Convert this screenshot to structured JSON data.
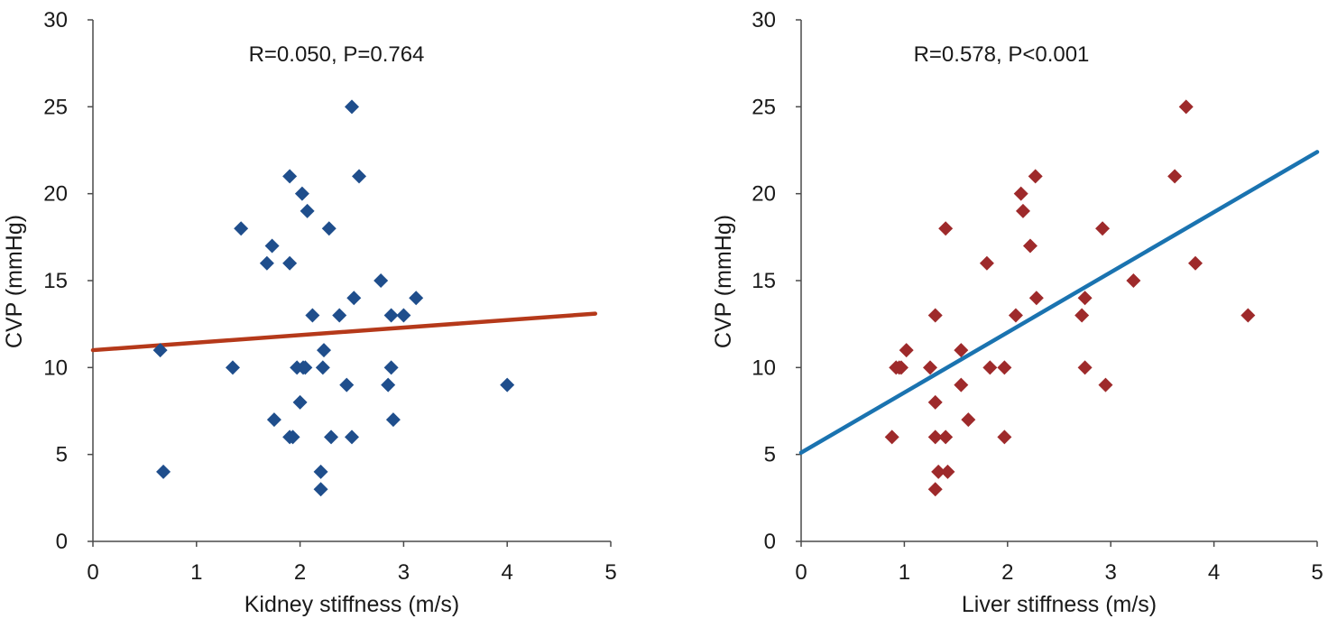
{
  "chart_data": [
    {
      "type": "scatter",
      "annotation": "R=0.050, P=0.764",
      "xlabel": "Kidney stiffness (m/s)",
      "ylabel": "CVP (mmHg)",
      "xlim": [
        0,
        5
      ],
      "ylim": [
        0,
        30
      ],
      "xticks": [
        "0",
        "1",
        "2",
        "3",
        "4",
        "5"
      ],
      "yticks": [
        "0",
        "5",
        "10",
        "15",
        "20",
        "25",
        "30"
      ],
      "marker_color": "#1f4e8c",
      "line_color": "#b5391a",
      "fit_line": [
        [
          0,
          11.0
        ],
        [
          4.85,
          13.1
        ]
      ],
      "points": [
        [
          0.65,
          11
        ],
        [
          0.68,
          4
        ],
        [
          1.35,
          10
        ],
        [
          1.43,
          18
        ],
        [
          1.68,
          16
        ],
        [
          1.73,
          17
        ],
        [
          1.75,
          7
        ],
        [
          1.9,
          21
        ],
        [
          1.9,
          16
        ],
        [
          1.9,
          6
        ],
        [
          1.93,
          6
        ],
        [
          1.97,
          10
        ],
        [
          2.0,
          8
        ],
        [
          2.02,
          20
        ],
        [
          2.03,
          10
        ],
        [
          2.05,
          10
        ],
        [
          2.07,
          19
        ],
        [
          2.12,
          13
        ],
        [
          2.2,
          4
        ],
        [
          2.2,
          3
        ],
        [
          2.22,
          10
        ],
        [
          2.23,
          11
        ],
        [
          2.28,
          18
        ],
        [
          2.3,
          6
        ],
        [
          2.38,
          13
        ],
        [
          2.45,
          9
        ],
        [
          2.5,
          25
        ],
        [
          2.5,
          6
        ],
        [
          2.52,
          14
        ],
        [
          2.57,
          21
        ],
        [
          2.78,
          15
        ],
        [
          2.85,
          9
        ],
        [
          2.88,
          13
        ],
        [
          2.88,
          10
        ],
        [
          2.9,
          7
        ],
        [
          3.0,
          13
        ],
        [
          3.12,
          14
        ],
        [
          4.0,
          9
        ]
      ]
    },
    {
      "type": "scatter",
      "annotation": "R=0.578, P<0.001",
      "xlabel": "Liver stiffness (m/s)",
      "ylabel": "CVP (mmHg)",
      "xlim": [
        0,
        5
      ],
      "ylim": [
        0,
        30
      ],
      "xticks": [
        "0",
        "1",
        "2",
        "3",
        "4",
        "5"
      ],
      "yticks": [
        "0",
        "5",
        "10",
        "15",
        "20",
        "25",
        "30"
      ],
      "marker_color": "#9e2a2b",
      "line_color": "#1a73b0",
      "fit_line": [
        [
          0,
          5.1
        ],
        [
          5.0,
          22.4
        ]
      ],
      "points": [
        [
          0.88,
          6
        ],
        [
          0.92,
          10
        ],
        [
          0.95,
          10
        ],
        [
          0.97,
          10
        ],
        [
          1.02,
          11
        ],
        [
          1.25,
          10
        ],
        [
          1.3,
          13
        ],
        [
          1.3,
          8
        ],
        [
          1.3,
          6
        ],
        [
          1.3,
          3
        ],
        [
          1.33,
          4
        ],
        [
          1.4,
          18
        ],
        [
          1.4,
          6
        ],
        [
          1.42,
          4
        ],
        [
          1.55,
          11
        ],
        [
          1.55,
          9
        ],
        [
          1.62,
          7
        ],
        [
          1.8,
          16
        ],
        [
          1.83,
          10
        ],
        [
          1.97,
          10
        ],
        [
          1.97,
          6
        ],
        [
          2.08,
          13
        ],
        [
          2.13,
          20
        ],
        [
          2.15,
          19
        ],
        [
          2.22,
          17
        ],
        [
          2.27,
          21
        ],
        [
          2.28,
          14
        ],
        [
          2.72,
          13
        ],
        [
          2.75,
          14
        ],
        [
          2.75,
          10
        ],
        [
          2.92,
          18
        ],
        [
          2.95,
          9
        ],
        [
          3.22,
          15
        ],
        [
          3.62,
          21
        ],
        [
          3.73,
          25
        ],
        [
          3.82,
          16
        ],
        [
          4.33,
          13
        ]
      ]
    }
  ]
}
